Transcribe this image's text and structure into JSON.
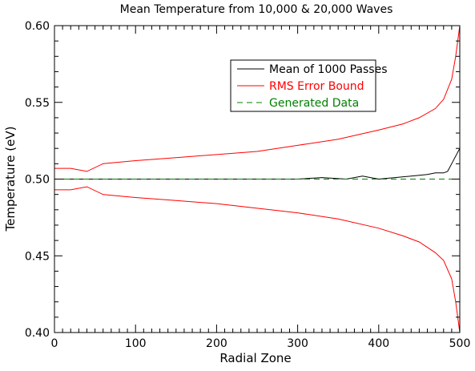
{
  "chart_data": {
    "type": "line",
    "title": "Mean Temperature from 10,000 & 20,000 Waves",
    "xlabel": "Radial Zone",
    "ylabel": "Temperature (eV)",
    "xlim": [
      0,
      500
    ],
    "ylim": [
      0.4,
      0.6
    ],
    "x_ticks": [
      "0",
      "100",
      "200",
      "300",
      "400",
      "500"
    ],
    "y_ticks": [
      "0.40",
      "0.45",
      "0.50",
      "0.55",
      "0.60"
    ],
    "grid": false,
    "legend_position": "top-right",
    "series": [
      {
        "name": "Mean of 1000 Passes",
        "color": "#000000",
        "style": "solid",
        "x": [
          0,
          50,
          100,
          150,
          200,
          250,
          300,
          330,
          360,
          380,
          400,
          420,
          440,
          460,
          470,
          480,
          485,
          490,
          495,
          500
        ],
        "y": [
          0.5,
          0.5,
          0.5,
          0.5,
          0.5,
          0.5,
          0.5,
          0.501,
          0.5,
          0.502,
          0.5,
          0.501,
          0.502,
          0.503,
          0.504,
          0.504,
          0.505,
          0.51,
          0.515,
          0.52
        ]
      },
      {
        "name": "RMS Error Bound",
        "color": "#ff0000",
        "style": "solid",
        "x": [
          0,
          20,
          40,
          60,
          100,
          150,
          200,
          250,
          300,
          350,
          400,
          430,
          450,
          470,
          480,
          490,
          495,
          500
        ],
        "y": [
          0.507,
          0.507,
          0.505,
          0.51,
          0.512,
          0.514,
          0.516,
          0.518,
          0.522,
          0.526,
          0.532,
          0.536,
          0.54,
          0.546,
          0.552,
          0.565,
          0.58,
          0.6
        ]
      },
      {
        "name": "",
        "color": "#ff0000",
        "style": "solid",
        "x": [
          0,
          20,
          40,
          60,
          100,
          150,
          200,
          250,
          300,
          350,
          400,
          430,
          450,
          470,
          480,
          490,
          495,
          500
        ],
        "y": [
          0.493,
          0.493,
          0.495,
          0.49,
          0.488,
          0.486,
          0.484,
          0.481,
          0.478,
          0.474,
          0.468,
          0.463,
          0.459,
          0.452,
          0.447,
          0.435,
          0.42,
          0.4
        ]
      },
      {
        "name": "Generated Data",
        "color": "#008000",
        "style": "dashed",
        "x": [
          0,
          500
        ],
        "y": [
          0.5,
          0.5
        ]
      }
    ]
  }
}
